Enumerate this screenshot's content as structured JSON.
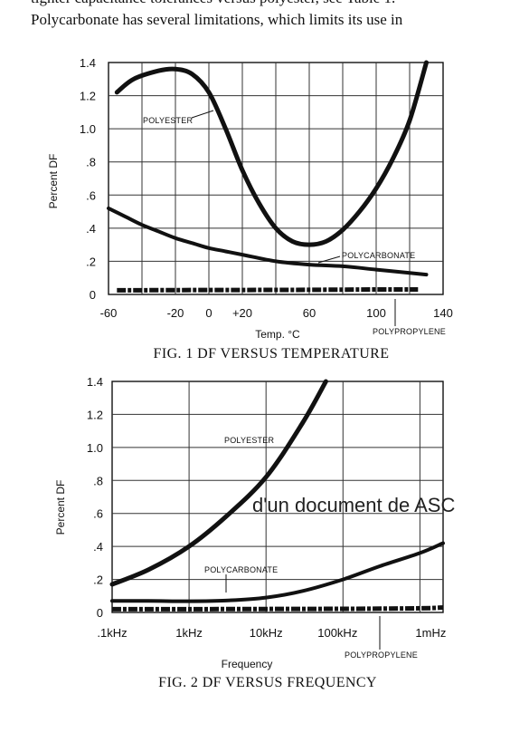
{
  "text_lines": {
    "line1": "tighter capacitance tolerances versus polyester, see Table 1.",
    "line2": "Polycarbonate has several limitations, which limits its use in"
  },
  "watermark": "d'un document de ASC",
  "chart_data": [
    {
      "type": "line",
      "caption": "FIG. 1   DF VERSUS TEMPERATURE",
      "xlabel": "Temp. °C",
      "ylabel": "Percent DF",
      "xlim": [
        -60,
        140
      ],
      "ylim": [
        0,
        1.4
      ],
      "x_tick_values": [
        -60,
        -20,
        0,
        20,
        60,
        100,
        140
      ],
      "x_tick_labels": [
        "-60",
        "-20",
        "0",
        "+20",
        "60",
        "100",
        "140"
      ],
      "y_tick_values": [
        0,
        0.2,
        0.4,
        0.6,
        0.8,
        1.0,
        1.2,
        1.4
      ],
      "y_tick_labels": [
        "0",
        ".2",
        ".4",
        ".6",
        ".8",
        "1.0",
        "1.2",
        "1.4"
      ],
      "grid": true,
      "series": [
        {
          "name": "POLYESTER",
          "x": [
            -55,
            -45,
            -30,
            -20,
            -10,
            0,
            10,
            20,
            30,
            40,
            50,
            60,
            70,
            80,
            90,
            100,
            110,
            120,
            130
          ],
          "y": [
            1.22,
            1.3,
            1.35,
            1.36,
            1.33,
            1.22,
            1.0,
            0.75,
            0.55,
            0.4,
            0.32,
            0.3,
            0.32,
            0.39,
            0.5,
            0.64,
            0.82,
            1.05,
            1.4
          ]
        },
        {
          "name": "POLYCARBONATE",
          "x": [
            -60,
            -50,
            -40,
            -30,
            -20,
            -10,
            0,
            10,
            20,
            40,
            60,
            80,
            100,
            120,
            130
          ],
          "y": [
            0.52,
            0.47,
            0.42,
            0.38,
            0.34,
            0.31,
            0.28,
            0.26,
            0.24,
            0.2,
            0.18,
            0.17,
            0.15,
            0.13,
            0.12
          ]
        },
        {
          "name": "POLYPROPYLENE",
          "x": [
            -55,
            -20,
            20,
            60,
            100,
            125
          ],
          "y": [
            0.025,
            0.026,
            0.027,
            0.028,
            0.03,
            0.03
          ]
        }
      ]
    },
    {
      "type": "line",
      "caption": "FIG. 2   DF VERSUS FREQUENCY",
      "xlabel": "Frequency",
      "ylabel": "Percent DF",
      "x_scale": "log",
      "xlim": [
        "100Hz",
        "2mHz"
      ],
      "ylim": [
        0,
        1.4
      ],
      "x_tick_labels": [
        ".1kHz",
        "1kHz",
        "10kHz",
        "100kHz",
        "1mHz"
      ],
      "y_tick_values": [
        0,
        0.2,
        0.4,
        0.6,
        0.8,
        1.0,
        1.2,
        1.4
      ],
      "y_tick_labels": [
        "0",
        ".2",
        ".4",
        ".6",
        ".8",
        "1.0",
        "1.2",
        "1.4"
      ],
      "grid": true,
      "series": [
        {
          "name": "POLYESTER",
          "x": [
            "100Hz",
            "300Hz",
            "1kHz",
            "3kHz",
            "10kHz",
            "30kHz",
            "60kHz"
          ],
          "y": [
            0.17,
            0.26,
            0.4,
            0.58,
            0.82,
            1.15,
            1.4
          ]
        },
        {
          "name": "POLYCARBONATE",
          "x": [
            "100Hz",
            "300Hz",
            "1kHz",
            "3kHz",
            "10kHz",
            "30kHz",
            "100kHz",
            "300kHz",
            "1mHz",
            "2mHz"
          ],
          "y": [
            0.07,
            0.07,
            0.068,
            0.072,
            0.09,
            0.13,
            0.2,
            0.28,
            0.36,
            0.42
          ]
        },
        {
          "name": "POLYPROPYLENE",
          "x": [
            "100Hz",
            "1kHz",
            "10kHz",
            "100kHz",
            "1mHz",
            "2mHz"
          ],
          "y": [
            0.02,
            0.02,
            0.021,
            0.022,
            0.025,
            0.03
          ]
        }
      ]
    }
  ]
}
